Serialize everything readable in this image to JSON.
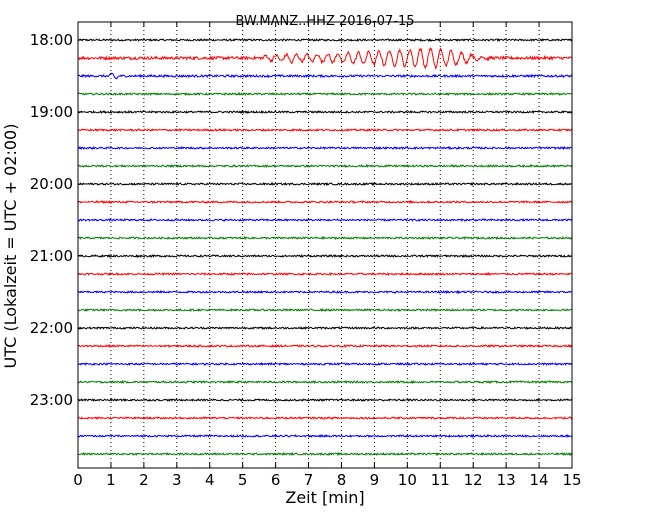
{
  "chart_data": {
    "type": "line",
    "title": "BW.MANZ..HHZ 2016-07-15",
    "xlabel": "Zeit  [min]",
    "ylabel": "UTC (Lokalzeit = UTC + 02:00)",
    "xlim": [
      0,
      15
    ],
    "x_ticks": [
      "0",
      "1",
      "2",
      "3",
      "4",
      "5",
      "6",
      "7",
      "8",
      "9",
      "10",
      "11",
      "12",
      "13",
      "14",
      "15"
    ],
    "y_ticks": [
      "18:00",
      "19:00",
      "20:00",
      "21:00",
      "22:00",
      "23:00"
    ],
    "grid": "vertical dotted",
    "color_cycle": [
      "#000000",
      "#ff0000",
      "#0000ff",
      "#008000"
    ],
    "traces": [
      {
        "start": "18:00",
        "amplitude": 0.05
      },
      {
        "start": "18:15",
        "amplitude": 0.08,
        "event": {
          "x_start": 5.6,
          "x_end": 12.6,
          "peak_x": 10.8,
          "amplitude": 0.55
        }
      },
      {
        "start": "18:30",
        "amplitude": 0.06,
        "event": {
          "x_start": 0.9,
          "x_end": 1.3,
          "peak_x": 1.1,
          "amplitude": 0.2
        }
      },
      {
        "start": "18:45",
        "amplitude": 0.05
      },
      {
        "start": "19:00",
        "amplitude": 0.05
      },
      {
        "start": "19:15",
        "amplitude": 0.05
      },
      {
        "start": "19:30",
        "amplitude": 0.05
      },
      {
        "start": "19:45",
        "amplitude": 0.05
      },
      {
        "start": "20:00",
        "amplitude": 0.05
      },
      {
        "start": "20:15",
        "amplitude": 0.05
      },
      {
        "start": "20:30",
        "amplitude": 0.05
      },
      {
        "start": "20:45",
        "amplitude": 0.05
      },
      {
        "start": "21:00",
        "amplitude": 0.05
      },
      {
        "start": "21:15",
        "amplitude": 0.05
      },
      {
        "start": "21:30",
        "amplitude": 0.05
      },
      {
        "start": "21:45",
        "amplitude": 0.05
      },
      {
        "start": "22:00",
        "amplitude": 0.05
      },
      {
        "start": "22:15",
        "amplitude": 0.05
      },
      {
        "start": "22:30",
        "amplitude": 0.05
      },
      {
        "start": "22:45",
        "amplitude": 0.05
      },
      {
        "start": "23:00",
        "amplitude": 0.05
      },
      {
        "start": "23:15",
        "amplitude": 0.05
      },
      {
        "start": "23:30",
        "amplitude": 0.05
      },
      {
        "start": "23:45",
        "amplitude": 0.05
      }
    ]
  }
}
